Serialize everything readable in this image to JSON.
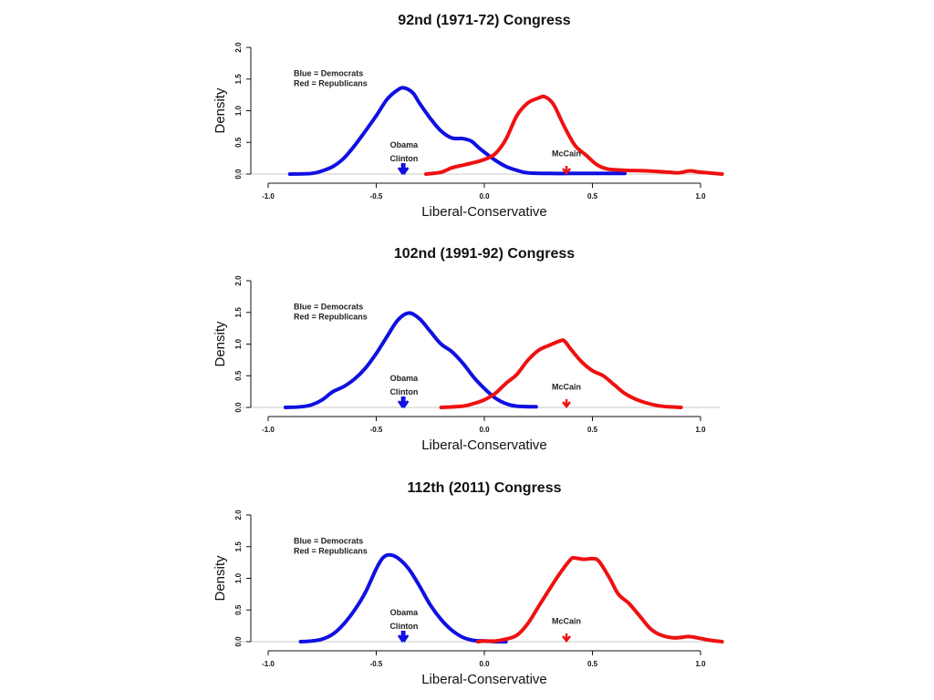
{
  "chart_data": [
    {
      "type": "line",
      "title": "92nd (1971-72) Congress",
      "xlabel": "Liberal-Conservative",
      "ylabel": "Density",
      "xlim": [
        -1.0,
        1.1
      ],
      "ylim": [
        0,
        2.0
      ],
      "xticks": [
        -1.0,
        -0.5,
        0.0,
        0.5,
        1.0
      ],
      "xtick_labels": [
        "-1.0",
        "-0.5",
        "0.0",
        "0.5",
        "1.0"
      ],
      "yticks": [
        0.0,
        0.5,
        1.0,
        1.5,
        2.0
      ],
      "ytick_labels": [
        "0.0",
        "0.5",
        "1.0",
        "1.5",
        "2.0"
      ],
      "legend": [
        "Blue = Democrats",
        "Red = Republicans"
      ],
      "legend_position": "top-left",
      "series": [
        {
          "name": "Democrats",
          "color": "#1010e0",
          "x": [
            -0.9,
            -0.8,
            -0.75,
            -0.7,
            -0.65,
            -0.6,
            -0.55,
            -0.5,
            -0.45,
            -0.4,
            -0.37,
            -0.33,
            -0.3,
            -0.25,
            -0.2,
            -0.15,
            -0.1,
            -0.06,
            -0.02,
            0.05,
            0.1,
            0.15,
            0.2,
            0.3,
            0.4,
            0.5,
            0.65
          ],
          "y": [
            0.0,
            0.01,
            0.05,
            0.12,
            0.25,
            0.45,
            0.68,
            0.92,
            1.18,
            1.33,
            1.36,
            1.28,
            1.12,
            0.88,
            0.68,
            0.57,
            0.56,
            0.52,
            0.4,
            0.22,
            0.12,
            0.06,
            0.02,
            0.01,
            0.01,
            0.01,
            0.01
          ]
        },
        {
          "name": "Republicans",
          "color": "#ee1111",
          "x": [
            -0.27,
            -0.2,
            -0.15,
            -0.1,
            -0.05,
            0.0,
            0.05,
            0.1,
            0.15,
            0.2,
            0.25,
            0.28,
            0.32,
            0.37,
            0.42,
            0.47,
            0.52,
            0.57,
            0.65,
            0.75,
            0.85,
            0.9,
            0.95,
            1.0,
            1.1
          ],
          "y": [
            0.0,
            0.03,
            0.1,
            0.14,
            0.18,
            0.23,
            0.32,
            0.55,
            0.92,
            1.12,
            1.2,
            1.22,
            1.1,
            0.75,
            0.45,
            0.3,
            0.15,
            0.08,
            0.06,
            0.05,
            0.03,
            0.02,
            0.05,
            0.03,
            0.0
          ]
        }
      ],
      "annotations": [
        {
          "label": "Obama",
          "x": -0.38,
          "color": "#1010e0"
        },
        {
          "label": "Clinton",
          "x": -0.37,
          "color": "#1010e0"
        },
        {
          "label": "McCain",
          "x": 0.38,
          "color": "#ee1111"
        }
      ]
    },
    {
      "type": "line",
      "title": "102nd (1991-92) Congress",
      "xlabel": "Liberal-Conservative",
      "ylabel": "Density",
      "xlim": [
        -1.0,
        1.1
      ],
      "ylim": [
        0,
        2.0
      ],
      "xticks": [
        -1.0,
        -0.5,
        0.0,
        0.5,
        1.0
      ],
      "xtick_labels": [
        "-1.0",
        "-0.5",
        "0.0",
        "0.5",
        "1.0"
      ],
      "yticks": [
        0.0,
        0.5,
        1.0,
        1.5,
        2.0
      ],
      "ytick_labels": [
        "0.0",
        "0.5",
        "1.0",
        "1.5",
        "2.0"
      ],
      "legend": [
        "Blue = Democrats",
        "Red = Republicans"
      ],
      "legend_position": "top-left",
      "series": [
        {
          "name": "Democrats",
          "color": "#1010e0",
          "x": [
            -0.92,
            -0.85,
            -0.8,
            -0.75,
            -0.7,
            -0.65,
            -0.6,
            -0.55,
            -0.5,
            -0.45,
            -0.4,
            -0.35,
            -0.3,
            -0.25,
            -0.2,
            -0.15,
            -0.1,
            -0.05,
            0.0,
            0.05,
            0.1,
            0.15,
            0.24
          ],
          "y": [
            0.0,
            0.01,
            0.04,
            0.12,
            0.25,
            0.33,
            0.45,
            0.62,
            0.85,
            1.12,
            1.38,
            1.49,
            1.4,
            1.2,
            1.0,
            0.88,
            0.7,
            0.48,
            0.3,
            0.15,
            0.06,
            0.02,
            0.01
          ]
        },
        {
          "name": "Republicans",
          "color": "#ee1111",
          "x": [
            -0.2,
            -0.1,
            -0.05,
            0.0,
            0.05,
            0.1,
            0.15,
            0.2,
            0.25,
            0.3,
            0.35,
            0.37,
            0.4,
            0.45,
            0.5,
            0.55,
            0.6,
            0.65,
            0.7,
            0.75,
            0.8,
            0.85,
            0.91
          ],
          "y": [
            0.0,
            0.02,
            0.06,
            0.12,
            0.22,
            0.38,
            0.52,
            0.74,
            0.9,
            0.98,
            1.05,
            1.05,
            0.92,
            0.72,
            0.58,
            0.5,
            0.36,
            0.22,
            0.13,
            0.07,
            0.03,
            0.01,
            0.0
          ]
        }
      ],
      "annotations": [
        {
          "label": "Obama",
          "x": -0.38,
          "color": "#1010e0"
        },
        {
          "label": "Clinton",
          "x": -0.37,
          "color": "#1010e0"
        },
        {
          "label": "McCain",
          "x": 0.38,
          "color": "#ee1111"
        }
      ]
    },
    {
      "type": "line",
      "title": "112th (2011) Congress",
      "xlabel": "Liberal-Conservative",
      "ylabel": "Density",
      "xlim": [
        -1.0,
        1.1
      ],
      "ylim": [
        0,
        2.0
      ],
      "xticks": [
        -1.0,
        -0.5,
        0.0,
        0.5,
        1.0
      ],
      "xtick_labels": [
        "-1.0",
        "-0.5",
        "0.0",
        "0.5",
        "1.0"
      ],
      "yticks": [
        0.0,
        0.5,
        1.0,
        1.5,
        2.0
      ],
      "ytick_labels": [
        "0.0",
        "0.5",
        "1.0",
        "1.5",
        "2.0"
      ],
      "legend": [
        "Blue = Democrats",
        "Red = Republicans"
      ],
      "legend_position": "top-left",
      "series": [
        {
          "name": "Democrats",
          "color": "#1010e0",
          "x": [
            -0.85,
            -0.8,
            -0.75,
            -0.7,
            -0.65,
            -0.6,
            -0.55,
            -0.5,
            -0.47,
            -0.44,
            -0.4,
            -0.35,
            -0.3,
            -0.25,
            -0.2,
            -0.15,
            -0.1,
            -0.05,
            0.0,
            0.05,
            0.1
          ],
          "y": [
            0.0,
            0.01,
            0.04,
            0.12,
            0.28,
            0.5,
            0.78,
            1.15,
            1.32,
            1.37,
            1.32,
            1.15,
            0.88,
            0.58,
            0.35,
            0.18,
            0.07,
            0.02,
            0.01,
            0.0,
            0.0
          ]
        },
        {
          "name": "Republicans",
          "color": "#ee1111",
          "x": [
            -0.03,
            0.0,
            0.05,
            0.1,
            0.15,
            0.2,
            0.25,
            0.3,
            0.35,
            0.4,
            0.42,
            0.46,
            0.5,
            0.53,
            0.58,
            0.62,
            0.67,
            0.72,
            0.77,
            0.82,
            0.88,
            0.95,
            1.0,
            1.05,
            1.1
          ],
          "y": [
            0.0,
            0.01,
            0.01,
            0.04,
            0.1,
            0.28,
            0.55,
            0.82,
            1.08,
            1.3,
            1.32,
            1.3,
            1.31,
            1.27,
            1.0,
            0.75,
            0.6,
            0.4,
            0.2,
            0.1,
            0.06,
            0.08,
            0.05,
            0.02,
            0.0
          ]
        }
      ],
      "annotations": [
        {
          "label": "Obama",
          "x": -0.38,
          "color": "#1010e0"
        },
        {
          "label": "Clinton",
          "x": -0.37,
          "color": "#1010e0"
        },
        {
          "label": "McCain",
          "x": 0.38,
          "color": "#ee1111"
        }
      ]
    }
  ]
}
